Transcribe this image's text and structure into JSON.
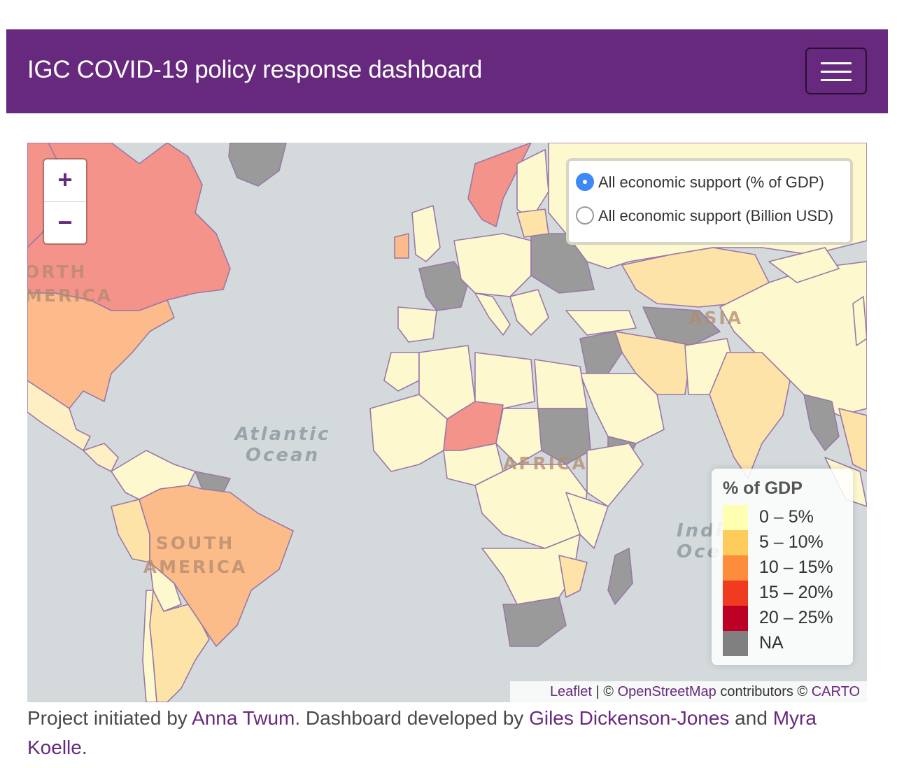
{
  "navbar": {
    "brand": "IGC COVID-19 policy response dashboard",
    "menu_icon": "hamburger-menu-icon"
  },
  "map": {
    "zoom_in_label": "+",
    "zoom_out_label": "−",
    "ocean_labels": {
      "atlantic_line1": "Atlantic",
      "atlantic_line2": "Ocean",
      "indian_line1": "Indi",
      "indian_line2": "Oce"
    },
    "continent_labels": {
      "north_america_line1": "ORTH",
      "north_america_line2": "MERICA",
      "south_america_line1": "SOUTH",
      "south_america_line2": "AMERICA",
      "africa": "AFRICA",
      "asia": "ASIA"
    },
    "layers": {
      "options": [
        {
          "label": "All economic support (% of GDP)",
          "selected": true
        },
        {
          "label": "All economic support (Billion USD)",
          "selected": false
        }
      ]
    },
    "legend": {
      "title": "% of GDP",
      "items": [
        {
          "label": "0 – 5%",
          "color": "#ffffb2"
        },
        {
          "label": "5 – 10%",
          "color": "#fecc5c"
        },
        {
          "label": "10 – 15%",
          "color": "#fd8d3c"
        },
        {
          "label": "15 – 20%",
          "color": "#f03b20"
        },
        {
          "label": "20 – 25%",
          "color": "#bd0026"
        },
        {
          "label": "NA",
          "color": "#808080"
        }
      ]
    },
    "attribution": {
      "leaflet": "Leaflet",
      "sep1": " | © ",
      "osm": "OpenStreetMap",
      "contributors": " contributors © ",
      "carto": "CARTO"
    }
  },
  "footer": {
    "t1": "Project initiated by ",
    "link1": "Anna Twum",
    "t2": ". Dashboard developed by ",
    "link2": "Giles Dickenson-Jones",
    "t3": " and ",
    "link3": "Myra Koelle",
    "t4": "."
  }
}
